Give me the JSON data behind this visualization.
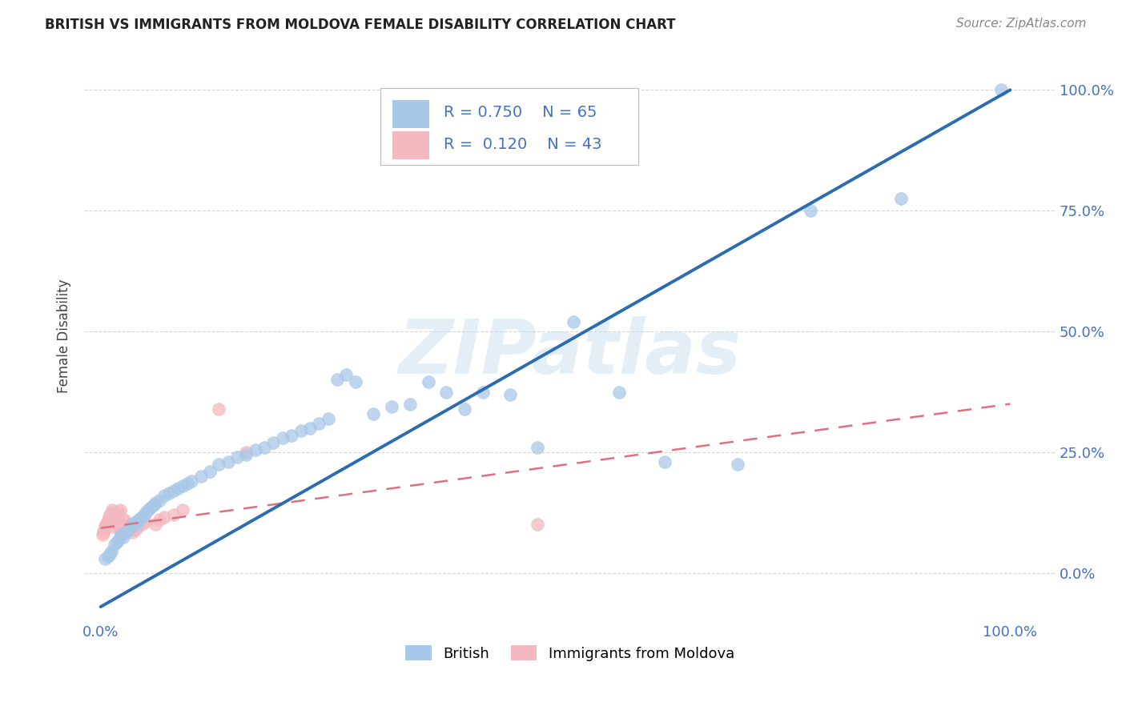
{
  "title": "BRITISH VS IMMIGRANTS FROM MOLDOVA FEMALE DISABILITY CORRELATION CHART",
  "source": "Source: ZipAtlas.com",
  "ylabel": "Female Disability",
  "watermark": "ZIPatlas",
  "legend_british_R": "0.750",
  "legend_british_N": "65",
  "legend_moldova_R": "0.120",
  "legend_moldova_N": "43",
  "british_color": "#a8c8e8",
  "moldova_color": "#f4b8c0",
  "british_line_color": "#2b6cb0",
  "moldova_line_color": "#e07080",
  "british_x": [
    0.005,
    0.008,
    0.01,
    0.012,
    0.015,
    0.018,
    0.02,
    0.022,
    0.025,
    0.028,
    0.03,
    0.032,
    0.035,
    0.038,
    0.04,
    0.042,
    0.045,
    0.048,
    0.05,
    0.052,
    0.055,
    0.058,
    0.06,
    0.065,
    0.07,
    0.075,
    0.08,
    0.085,
    0.09,
    0.095,
    0.1,
    0.11,
    0.12,
    0.13,
    0.14,
    0.15,
    0.16,
    0.17,
    0.18,
    0.19,
    0.2,
    0.21,
    0.22,
    0.23,
    0.24,
    0.25,
    0.26,
    0.27,
    0.28,
    0.3,
    0.32,
    0.34,
    0.36,
    0.38,
    0.4,
    0.42,
    0.45,
    0.48,
    0.52,
    0.57,
    0.62,
    0.7,
    0.78,
    0.88,
    0.99
  ],
  "british_y": [
    0.03,
    0.035,
    0.04,
    0.045,
    0.06,
    0.065,
    0.07,
    0.08,
    0.075,
    0.085,
    0.09,
    0.095,
    0.1,
    0.105,
    0.1,
    0.11,
    0.115,
    0.12,
    0.125,
    0.13,
    0.135,
    0.14,
    0.145,
    0.15,
    0.16,
    0.165,
    0.17,
    0.175,
    0.18,
    0.185,
    0.19,
    0.2,
    0.21,
    0.225,
    0.23,
    0.24,
    0.245,
    0.255,
    0.26,
    0.27,
    0.28,
    0.285,
    0.295,
    0.3,
    0.31,
    0.32,
    0.4,
    0.41,
    0.395,
    0.33,
    0.345,
    0.35,
    0.395,
    0.375,
    0.34,
    0.375,
    0.37,
    0.26,
    0.52,
    0.375,
    0.23,
    0.225,
    0.75,
    0.775,
    1.0
  ],
  "moldova_x": [
    0.002,
    0.003,
    0.004,
    0.005,
    0.006,
    0.007,
    0.008,
    0.009,
    0.01,
    0.01,
    0.011,
    0.012,
    0.013,
    0.014,
    0.015,
    0.016,
    0.017,
    0.018,
    0.019,
    0.02,
    0.021,
    0.022,
    0.023,
    0.024,
    0.025,
    0.026,
    0.027,
    0.028,
    0.03,
    0.032,
    0.035,
    0.038,
    0.04,
    0.045,
    0.05,
    0.06,
    0.065,
    0.07,
    0.08,
    0.09,
    0.13,
    0.48,
    0.16
  ],
  "moldova_y": [
    0.08,
    0.085,
    0.09,
    0.095,
    0.1,
    0.105,
    0.11,
    0.115,
    0.12,
    0.115,
    0.12,
    0.125,
    0.13,
    0.095,
    0.1,
    0.105,
    0.11,
    0.115,
    0.12,
    0.125,
    0.13,
    0.085,
    0.09,
    0.095,
    0.1,
    0.11,
    0.105,
    0.1,
    0.095,
    0.09,
    0.085,
    0.09,
    0.095,
    0.1,
    0.105,
    0.1,
    0.11,
    0.115,
    0.12,
    0.13,
    0.34,
    0.1,
    0.25
  ],
  "brit_line_x0": 0.0,
  "brit_line_y0": -0.07,
  "brit_line_x1": 1.0,
  "brit_line_y1": 1.0,
  "mold_line_x0": 0.0,
  "mold_line_y0": 0.093,
  "mold_line_x1": 1.0,
  "mold_line_y1": 0.35,
  "xlim": [
    -0.018,
    1.05
  ],
  "ylim": [
    -0.1,
    1.08
  ],
  "yticks": [
    0.0,
    0.25,
    0.5,
    0.75,
    1.0
  ],
  "ytick_labels_right": [
    "0.0%",
    "25.0%",
    "50.0%",
    "75.0%",
    "100.0%"
  ],
  "xtick_positions": [
    0.0,
    0.2,
    0.4,
    0.6,
    0.8,
    1.0
  ],
  "xtick_labels": [
    "0.0%",
    "",
    "",
    "",
    "",
    "100.0%"
  ],
  "grid_color": "#cccccc",
  "axis_color": "#4472c4",
  "title_fontsize": 12,
  "tick_fontsize": 13
}
